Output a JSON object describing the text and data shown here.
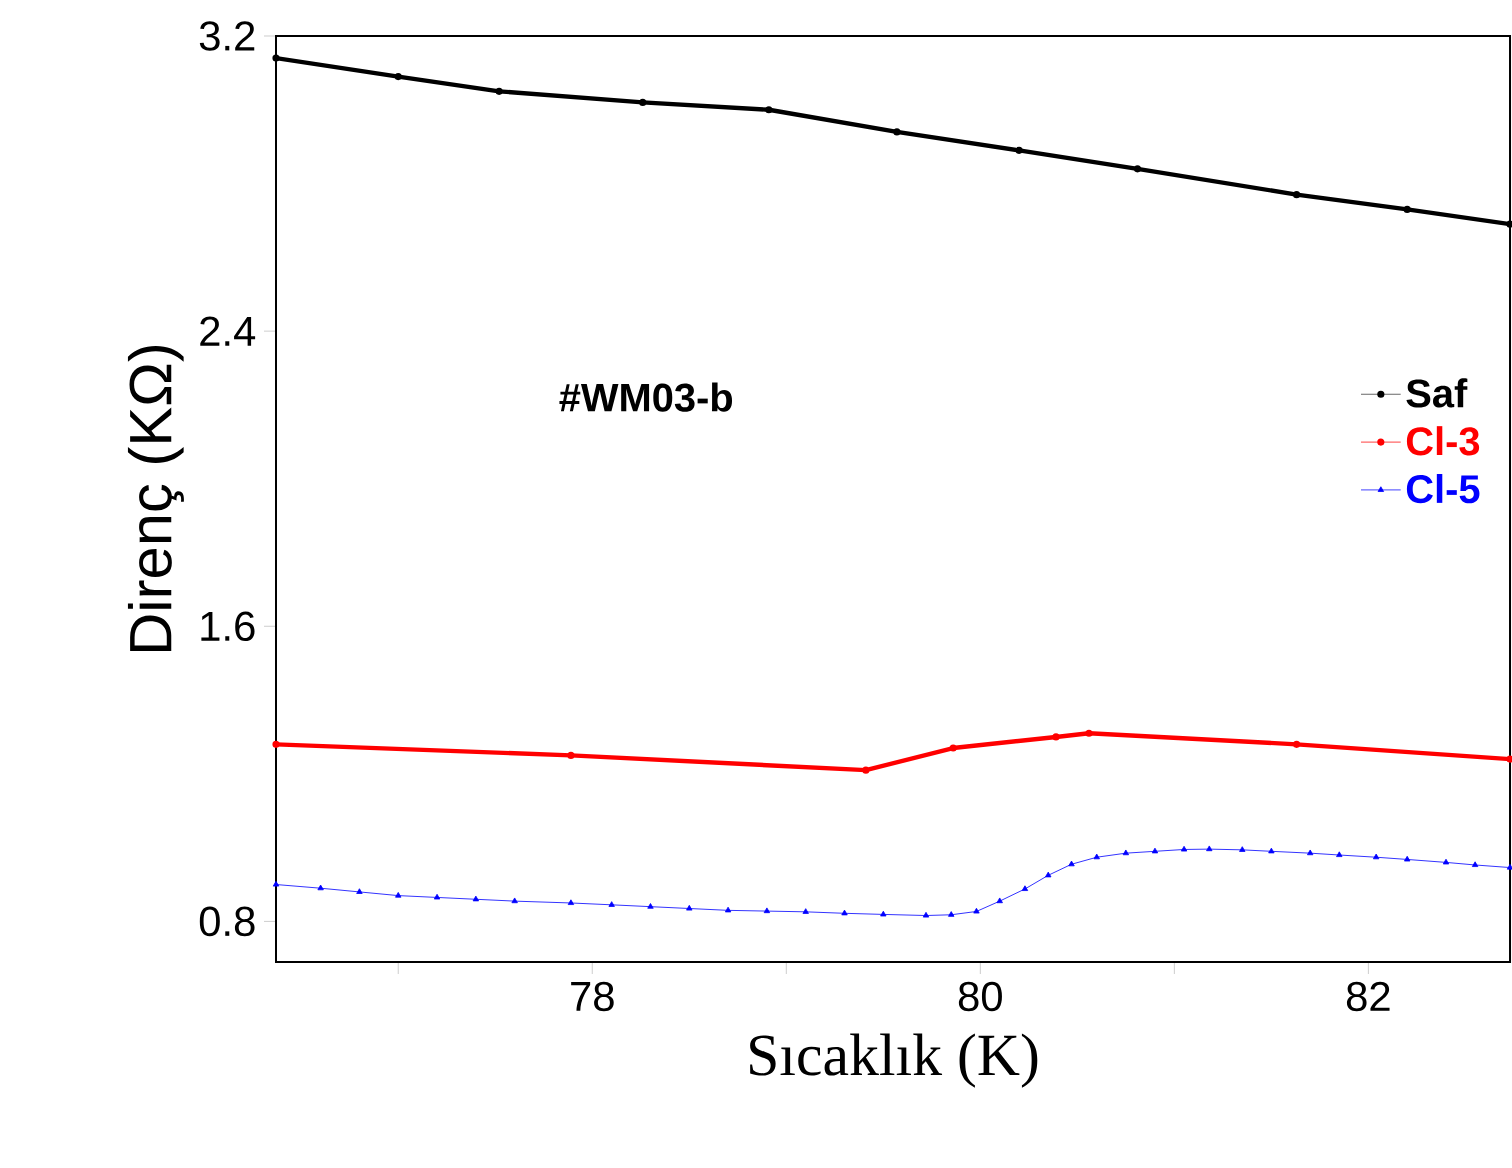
{
  "chart_data": {
    "type": "line",
    "xlabel": "Sıcaklık (K)",
    "ylabel": "Direnç (KΩ)",
    "annotations": [
      "#WM03-b"
    ],
    "xlim": [
      76.37,
      82.73
    ],
    "ylim": [
      0.69,
      3.2
    ],
    "xticks": [
      {
        "value": 77,
        "label": null
      },
      78,
      {
        "value": 79,
        "label": null
      },
      80,
      {
        "value": 81,
        "label": null
      },
      82
    ],
    "yticks": [
      0.8,
      1.6,
      2.4,
      3.2
    ],
    "legend": "right",
    "grid": false,
    "line_style": "solid",
    "series": [
      {
        "name": "Saf",
        "color": "#000000",
        "marker": "circle",
        "x": [
          76.37,
          77.0,
          77.52,
          78.26,
          78.91,
          79.57,
          80.2,
          80.81,
          81.63,
          82.2,
          82.73
        ],
        "values": [
          3.14,
          3.09,
          3.05,
          3.02,
          3.0,
          2.94,
          2.89,
          2.84,
          2.77,
          2.73,
          2.69
        ]
      },
      {
        "name": "Cl-3",
        "color": "#ff0000",
        "marker": "circle",
        "x": [
          76.37,
          77.89,
          79.41,
          79.86,
          80.39,
          80.56,
          81.63,
          82.73
        ],
        "values": [
          1.28,
          1.25,
          1.21,
          1.27,
          1.3,
          1.31,
          1.28,
          1.24
        ]
      },
      {
        "name": "Cl-5",
        "color": "#0000ff",
        "marker": "triangle",
        "x": [
          76.37,
          76.6,
          76.8,
          77.0,
          77.2,
          77.4,
          77.6,
          77.89,
          78.1,
          78.3,
          78.5,
          78.7,
          78.9,
          79.1,
          79.3,
          79.5,
          79.72,
          79.85,
          79.98,
          80.1,
          80.23,
          80.35,
          80.47,
          80.6,
          80.75,
          80.9,
          81.05,
          81.18,
          81.35,
          81.5,
          81.7,
          81.85,
          82.04,
          82.2,
          82.4,
          82.55,
          82.73
        ],
        "values": [
          0.9,
          0.89,
          0.88,
          0.87,
          0.865,
          0.86,
          0.855,
          0.85,
          0.845,
          0.84,
          0.835,
          0.83,
          0.828,
          0.826,
          0.822,
          0.819,
          0.816,
          0.818,
          0.827,
          0.855,
          0.888,
          0.925,
          0.955,
          0.974,
          0.985,
          0.99,
          0.995,
          0.996,
          0.994,
          0.99,
          0.985,
          0.98,
          0.974,
          0.968,
          0.96,
          0.953,
          0.946
        ]
      }
    ]
  }
}
